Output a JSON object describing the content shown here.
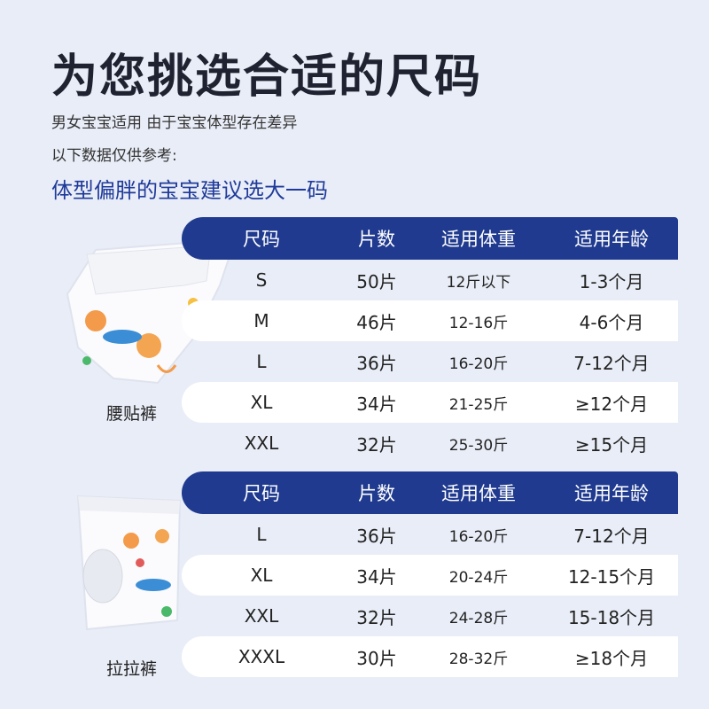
{
  "title": "为您挑选合适的尺码",
  "subtitle1": "男女宝宝适用 由于宝宝体型存在差异",
  "subtitle2": "以下数据仅供参考:",
  "highlight": "体型偏胖的宝宝建议选大一码",
  "tables": [
    {
      "label": "腰贴裤",
      "headers": [
        "尺码",
        "片数",
        "适用体重",
        "适用年龄"
      ],
      "rows": [
        [
          "S",
          "50片",
          "12斤以下",
          "1-3个月"
        ],
        [
          "M",
          "46片",
          "12-16斤",
          "4-6个月"
        ],
        [
          "L",
          "36片",
          "16-20斤",
          "7-12个月"
        ],
        [
          "XL",
          "34片",
          "21-25斤",
          "≥12个月"
        ],
        [
          "XXL",
          "32片",
          "25-30斤",
          "≥15个月"
        ]
      ]
    },
    {
      "label": "拉拉裤",
      "headers": [
        "尺码",
        "片数",
        "适用体重",
        "适用年龄"
      ],
      "rows": [
        [
          "L",
          "36片",
          "16-20斤",
          "7-12个月"
        ],
        [
          "XL",
          "34片",
          "20-24斤",
          "12-15个月"
        ],
        [
          "XXL",
          "32片",
          "24-28斤",
          "15-18个月"
        ],
        [
          "XXXL",
          "30片",
          "28-32斤",
          "≥18个月"
        ]
      ]
    }
  ],
  "colors": {
    "accent": "#1f3a8f",
    "background": "#e9edf7",
    "row_alt": "#ffffff"
  },
  "icons": [
    "tape-diaper-image",
    "pull-up-pants-image"
  ]
}
